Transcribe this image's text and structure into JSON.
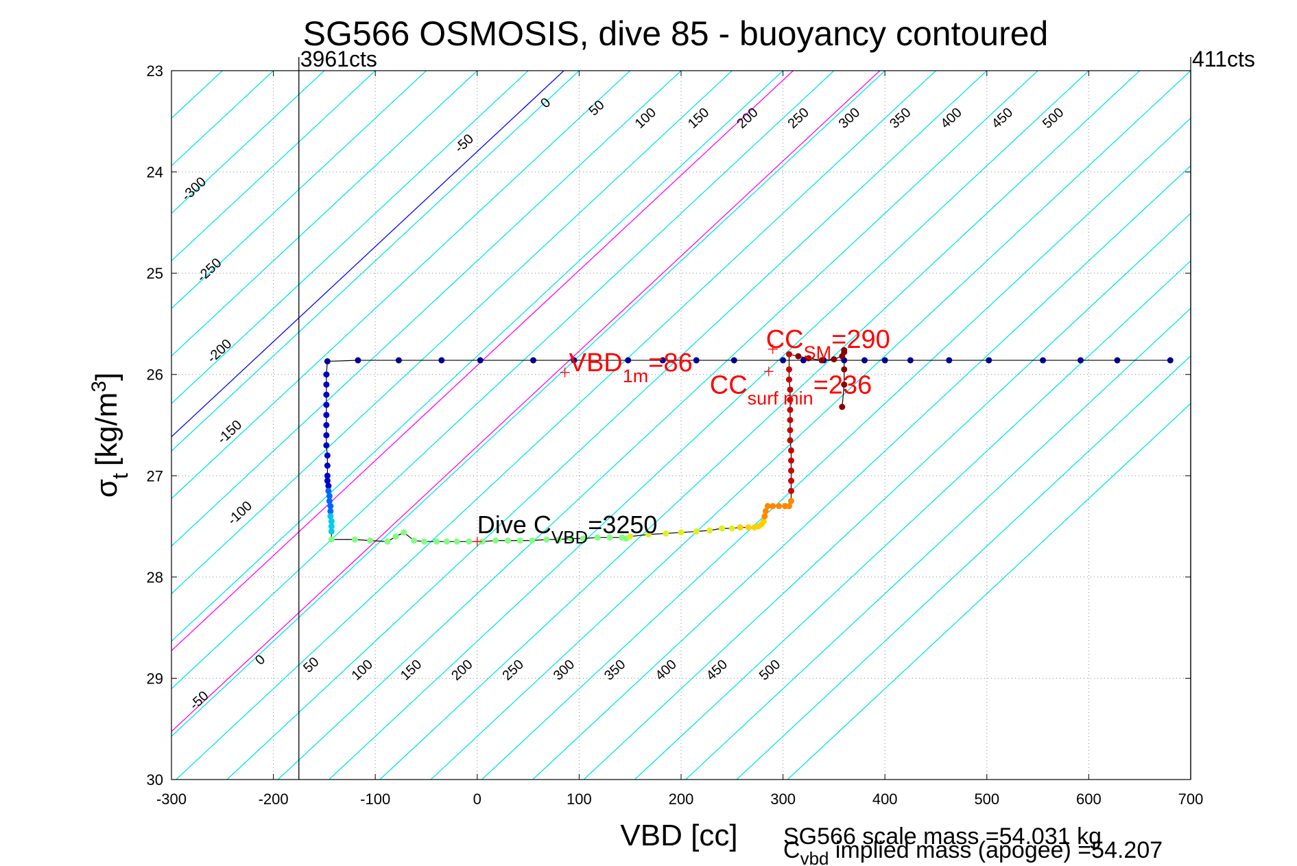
{
  "chart_data": {
    "type": "scatter",
    "title": "SG566 OSMOSIS, dive 85 - buoyancy contoured",
    "xlabel": "VBD [cc]",
    "ylabel_main": "σ",
    "ylabel_sub": "t",
    "ylabel_units_pre": "[kg/m",
    "ylabel_units_sup": "3",
    "ylabel_units_post": "]",
    "xlim": [
      -300,
      700
    ],
    "ylim": [
      23,
      30
    ],
    "y_reversed": true,
    "grid": true,
    "x_ticks": [
      -300,
      -200,
      -100,
      0,
      100,
      200,
      300,
      400,
      500,
      600,
      700
    ],
    "x_tick_labels": [
      "-300",
      "-200",
      "-100",
      "0",
      "100",
      "200",
      "300",
      "400",
      "500",
      "600",
      "700"
    ],
    "y_ticks": [
      23,
      24,
      25,
      26,
      27,
      28,
      29,
      30
    ],
    "y_tick_labels": [
      "23",
      "24",
      "25",
      "26",
      "27",
      "28",
      "29",
      "30"
    ],
    "counts_left": "3961cts",
    "counts_right": "411cts",
    "counts_left_x": -175,
    "colors": {
      "contour": "#00e5e5",
      "zero_contour": "#0000ff",
      "magenta_contour": "#ff00ff",
      "trace": "#000000",
      "annotation_red": "#ff0000",
      "count_line": "#000000",
      "grid": "#888888"
    },
    "contours": {
      "slope_x_per_sigma": -106.5,
      "x_at_sigma_23": [
        -300,
        -250,
        -200,
        -150,
        -100,
        -50,
        0,
        50,
        100,
        150,
        200,
        250,
        300,
        350,
        400,
        450,
        500,
        550,
        600,
        650,
        700,
        750,
        800,
        850,
        900,
        950,
        1000,
        1050
      ],
      "blue_values": [
        85
      ],
      "magenta_values": [
        310,
        395
      ],
      "upper_labels": [
        {
          "text": "-300",
          "x": -275,
          "y": 24.2
        },
        {
          "text": "-250",
          "x": -260,
          "y": 25.0
        },
        {
          "text": "-200",
          "x": -250,
          "y": 25.8
        },
        {
          "text": "-150",
          "x": -240,
          "y": 26.6
        },
        {
          "text": "-100",
          "x": -230,
          "y": 27.4
        },
        {
          "text": "-50",
          "x": -10,
          "y": 23.75
        },
        {
          "text": "0",
          "x": 70,
          "y": 23.35
        },
        {
          "text": "50",
          "x": 120,
          "y": 23.4
        },
        {
          "text": "100",
          "x": 168,
          "y": 23.5
        },
        {
          "text": "150",
          "x": 220,
          "y": 23.5
        },
        {
          "text": "200",
          "x": 268,
          "y": 23.5
        },
        {
          "text": "250",
          "x": 318,
          "y": 23.5
        },
        {
          "text": "300",
          "x": 368,
          "y": 23.5
        },
        {
          "text": "350",
          "x": 418,
          "y": 23.5
        },
        {
          "text": "400",
          "x": 468,
          "y": 23.5
        },
        {
          "text": "450",
          "x": 518,
          "y": 23.5
        },
        {
          "text": "500",
          "x": 568,
          "y": 23.5
        }
      ],
      "lower_labels": [
        {
          "text": "-50",
          "x": -270,
          "y": 29.25
        },
        {
          "text": "0",
          "x": -210,
          "y": 28.85
        },
        {
          "text": "50",
          "x": -160,
          "y": 28.9
        },
        {
          "text": "100",
          "x": -110,
          "y": 28.95
        },
        {
          "text": "150",
          "x": -62,
          "y": 28.95
        },
        {
          "text": "200",
          "x": -12,
          "y": 28.95
        },
        {
          "text": "250",
          "x": 38,
          "y": 28.95
        },
        {
          "text": "300",
          "x": 88,
          "y": 28.95
        },
        {
          "text": "350",
          "x": 138,
          "y": 28.95
        },
        {
          "text": "400",
          "x": 188,
          "y": 28.95
        },
        {
          "text": "450",
          "x": 238,
          "y": 28.95
        },
        {
          "text": "500",
          "x": 290,
          "y": 28.95
        }
      ]
    },
    "series": [
      {
        "color": "#00008f",
        "x": [
          680,
          628,
          592,
          555,
          502,
          463,
          425,
          400,
          380,
          360,
          340,
          320,
          300,
          252,
          215,
          182,
          148,
          95,
          55,
          3,
          -35,
          -77,
          -117,
          -147
        ],
        "y": [
          25.86,
          25.86,
          25.86,
          25.86,
          25.86,
          25.86,
          25.86,
          25.86,
          25.86,
          25.86,
          25.86,
          25.86,
          25.86,
          25.86,
          25.86,
          25.86,
          25.86,
          25.86,
          25.86,
          25.86,
          25.86,
          25.86,
          25.86,
          25.87
        ]
      },
      {
        "color": "#0000cc",
        "x": [
          -148,
          -148,
          -148,
          -148,
          -148,
          -148,
          -148,
          -148,
          -147,
          -147,
          -147,
          -147,
          -146
        ],
        "y": [
          26.0,
          26.1,
          26.2,
          26.3,
          26.4,
          26.5,
          26.6,
          26.7,
          26.8,
          26.9,
          27.0,
          27.05,
          27.1
        ]
      },
      {
        "color": "#0066ff",
        "x": [
          -146,
          -145,
          -145,
          -144,
          -144
        ],
        "y": [
          27.15,
          27.2,
          27.25,
          27.3,
          27.35
        ]
      },
      {
        "color": "#00ccee",
        "x": [
          -144,
          -143,
          -143,
          -143
        ],
        "y": [
          27.4,
          27.45,
          27.5,
          27.55
        ]
      },
      {
        "color": "#80ff80",
        "x": [
          -143,
          -120,
          -105,
          -88,
          -80,
          -72,
          -62,
          -52,
          -40,
          -30,
          -20,
          -8,
          5,
          18,
          30,
          42,
          54,
          68,
          80,
          92,
          104,
          118,
          130,
          142,
          146
        ],
        "y": [
          27.63,
          27.63,
          27.64,
          27.65,
          27.6,
          27.56,
          27.64,
          27.65,
          27.65,
          27.65,
          27.65,
          27.65,
          27.65,
          27.64,
          27.64,
          27.64,
          27.64,
          27.63,
          27.63,
          27.62,
          27.62,
          27.61,
          27.61,
          27.61,
          27.62
        ]
      },
      {
        "color": "#dff020",
        "x": [
          150,
          168,
          185,
          200,
          215,
          228,
          240,
          250
        ],
        "y": [
          27.6,
          27.58,
          27.57,
          27.56,
          27.55,
          27.54,
          27.52,
          27.52
        ]
      },
      {
        "color": "#ffd000",
        "x": [
          258,
          266,
          272,
          276,
          279,
          281
        ],
        "y": [
          27.51,
          27.51,
          27.51,
          27.5,
          27.48,
          27.45
        ]
      },
      {
        "color": "#ff8800",
        "x": [
          282,
          283,
          285,
          290,
          296,
          302,
          306,
          308
        ],
        "y": [
          27.4,
          27.35,
          27.3,
          27.3,
          27.3,
          27.3,
          27.3,
          27.25
        ]
      },
      {
        "color": "#cc0000",
        "x": [
          308,
          308,
          308,
          308,
          308,
          307,
          307,
          307,
          307,
          307,
          307,
          306,
          306,
          306
        ],
        "y": [
          27.15,
          27.05,
          26.95,
          26.85,
          26.75,
          26.65,
          26.55,
          26.45,
          26.35,
          26.25,
          26.15,
          26.05,
          25.95,
          25.8
        ]
      },
      {
        "color": "#8b0000",
        "x": [
          315,
          325,
          338,
          350,
          358,
          360,
          360,
          360,
          360,
          358
        ],
        "y": [
          25.82,
          25.84,
          25.86,
          25.85,
          25.82,
          25.78,
          25.76,
          25.95,
          26.1,
          26.32
        ]
      }
    ],
    "vbd_1m": {
      "label_pre": "VBD",
      "label_sub": "1m",
      "label_post": "=86",
      "x": 86,
      "y": 25.98
    },
    "cc_sm": {
      "label_pre": "CC",
      "label_sub": "SM",
      "label_post": "=290",
      "x": 290,
      "y": 25.75
    },
    "cc_surf_min": {
      "label_pre": "CC",
      "label_sub": "surf min",
      "label_post": "=236",
      "x": 286,
      "y": 25.97
    },
    "dive_cvbd": {
      "label_pre": "Dive C",
      "label_sub": "VBD",
      "label_post": "=3250",
      "x": 0,
      "y": 27.65
    },
    "footer_line1": "SG566 scale mass =54.031 kg",
    "footer_line2_pre": "C",
    "footer_line2_sub": "vbd",
    "footer_line2_post": " implied mass (apogee) =54.207"
  }
}
